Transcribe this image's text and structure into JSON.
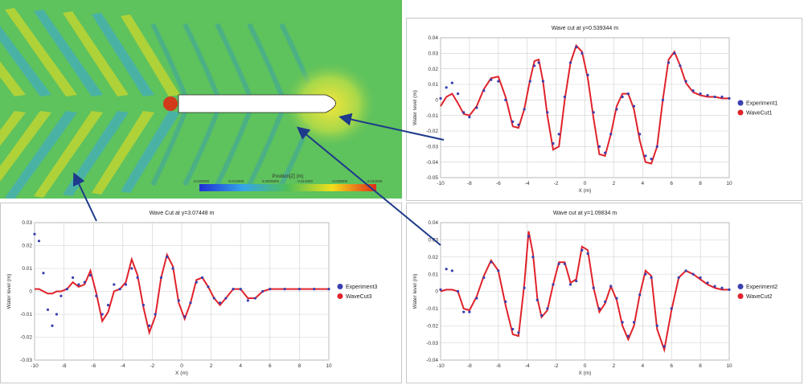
{
  "contour": {
    "legend_label": "Position[Z] (m)",
    "legend_ticks": [
      "-0.028000",
      "-0.014000",
      "0.0000000",
      "0.014000",
      "0.028000",
      "0.042000"
    ],
    "colors": {
      "low": "#1f2fd6",
      "mid": "#4fbf57",
      "high": "#e22b1b",
      "hull": "#ffffff"
    }
  },
  "chart_data": [
    {
      "id": "p1",
      "type": "line",
      "title": "Wave cut at y=0.539344 m",
      "xlabel": "X (m)",
      "ylabel": "Water level (m)",
      "xlim": [
        -10,
        10
      ],
      "ylim": [
        -0.05,
        0.04
      ],
      "xticks": [
        -10,
        -8,
        -6,
        -4,
        -2,
        0,
        2,
        4,
        6,
        8,
        10
      ],
      "yticks": [
        -0.05,
        -0.04,
        -0.03,
        -0.02,
        -0.01,
        0,
        0.01,
        0.02,
        0.03,
        0.04
      ],
      "grid": true,
      "legend_position": "right",
      "series": [
        {
          "name": "Experiment1",
          "color": "#3a3fb0",
          "style": "dots",
          "x": [
            -10,
            -9.6,
            -9.2,
            -8.8,
            -8.4,
            -8,
            -7.5,
            -7,
            -6.5,
            -6,
            -5.5,
            -5,
            -4.6,
            -4.2,
            -3.8,
            -3.5,
            -3.2,
            -2.9,
            -2.6,
            -2.2,
            -1.8,
            -1.4,
            -1,
            -0.6,
            -0.2,
            0.2,
            0.6,
            1,
            1.4,
            1.8,
            2.2,
            2.6,
            3,
            3.4,
            3.8,
            4.2,
            4.6,
            5,
            5.4,
            5.8,
            6.2,
            6.6,
            7,
            7.5,
            8,
            8.5,
            9,
            9.5,
            10
          ],
          "y": [
            0.001,
            0.008,
            0.011,
            0.004,
            -0.008,
            -0.011,
            -0.005,
            0.006,
            0.013,
            0.012,
            0,
            -0.014,
            -0.016,
            -0.006,
            0.012,
            0.022,
            0.024,
            0.012,
            -0.008,
            -0.028,
            -0.022,
            0.002,
            0.024,
            0.034,
            0.03,
            0.016,
            -0.008,
            -0.03,
            -0.034,
            -0.022,
            -0.006,
            0.002,
            0.004,
            -0.004,
            -0.022,
            -0.036,
            -0.038,
            -0.03,
            0,
            0.024,
            0.03,
            0.022,
            0.012,
            0.006,
            0.004,
            0.003,
            0.002,
            0.002,
            0.001
          ]
        },
        {
          "name": "WaveCut1",
          "color": "#e0222a",
          "style": "line",
          "x": [
            -10,
            -9.6,
            -9.2,
            -8.8,
            -8.4,
            -8,
            -7.5,
            -7,
            -6.5,
            -6,
            -5.5,
            -5,
            -4.6,
            -4.2,
            -3.8,
            -3.5,
            -3.2,
            -2.9,
            -2.6,
            -2.2,
            -1.8,
            -1.4,
            -1,
            -0.6,
            -0.2,
            0.2,
            0.6,
            1,
            1.4,
            1.8,
            2.2,
            2.6,
            3,
            3.4,
            3.8,
            4.2,
            4.6,
            5,
            5.4,
            5.8,
            6.2,
            6.6,
            7,
            7.5,
            8,
            8.5,
            9,
            9.5,
            10
          ],
          "y": [
            -0.004,
            0.002,
            0.004,
            -0.002,
            -0.009,
            -0.01,
            -0.004,
            0.007,
            0.014,
            0.015,
            0.002,
            -0.017,
            -0.018,
            -0.006,
            0.013,
            0.025,
            0.026,
            0.012,
            -0.01,
            -0.032,
            -0.03,
            0,
            0.024,
            0.035,
            0.031,
            0.014,
            -0.012,
            -0.035,
            -0.036,
            -0.022,
            -0.004,
            0.004,
            0.004,
            -0.006,
            -0.026,
            -0.04,
            -0.041,
            -0.03,
            0,
            0.026,
            0.031,
            0.022,
            0.011,
            0.005,
            0.003,
            0.002,
            0.002,
            0.001,
            0.001
          ]
        }
      ]
    },
    {
      "id": "p3",
      "type": "line",
      "title": "Wave Cut at y=3.07448 m",
      "xlabel": "X (m)",
      "ylabel": "Water level (m)",
      "xlim": [
        -10,
        10
      ],
      "ylim": [
        -0.03,
        0.03
      ],
      "xticks": [
        -10,
        -8,
        -6,
        -4,
        -2,
        0,
        2,
        4,
        6,
        8,
        10
      ],
      "yticks": [
        -0.03,
        -0.02,
        -0.01,
        0,
        0.01,
        0.02,
        0.03
      ],
      "grid": true,
      "legend_position": "right",
      "series": [
        {
          "name": "Experiment3",
          "color": "#3a3fb0",
          "style": "dots",
          "x": [
            -10,
            -9.7,
            -9.4,
            -9.1,
            -8.8,
            -8.5,
            -8.2,
            -7.8,
            -7.4,
            -7,
            -6.6,
            -6.2,
            -5.8,
            -5.4,
            -5,
            -4.6,
            -4.2,
            -3.8,
            -3.4,
            -3,
            -2.6,
            -2.2,
            -1.8,
            -1.4,
            -1,
            -0.6,
            -0.2,
            0.2,
            0.6,
            1,
            1.4,
            1.8,
            2.2,
            2.6,
            3,
            3.5,
            4,
            4.5,
            5,
            5.5,
            6,
            7,
            8,
            9,
            10
          ],
          "y": [
            0.025,
            0.022,
            0.008,
            -0.008,
            -0.015,
            -0.01,
            -0.002,
            0.001,
            0.006,
            0.003,
            0.004,
            0.007,
            -0.002,
            -0.01,
            -0.006,
            0.003,
            0.001,
            0.003,
            0.01,
            0.006,
            -0.006,
            -0.015,
            -0.01,
            0.006,
            0.015,
            0.01,
            -0.004,
            -0.011,
            -0.005,
            0.004,
            0.006,
            0.002,
            -0.003,
            -0.005,
            -0.003,
            0.001,
            0.001,
            -0.004,
            -0.003,
            0,
            0.001,
            0.001,
            0.001,
            0.001,
            0.001
          ]
        },
        {
          "name": "WaveCut3",
          "color": "#e0222a",
          "style": "line",
          "x": [
            -10,
            -9.7,
            -9.4,
            -9.1,
            -8.8,
            -8.5,
            -8.2,
            -7.8,
            -7.4,
            -7,
            -6.6,
            -6.2,
            -5.8,
            -5.4,
            -5,
            -4.6,
            -4.2,
            -3.8,
            -3.4,
            -3,
            -2.6,
            -2.2,
            -1.8,
            -1.4,
            -1,
            -0.6,
            -0.2,
            0.2,
            0.6,
            1,
            1.4,
            1.8,
            2.2,
            2.6,
            3,
            3.5,
            4,
            4.5,
            5,
            5.5,
            6,
            7,
            8,
            9,
            10
          ],
          "y": [
            0.001,
            0.001,
            0,
            -0.001,
            -0.001,
            0,
            0,
            0.001,
            0.004,
            0.002,
            0.003,
            0.009,
            -0.001,
            -0.013,
            -0.009,
            0,
            0.001,
            0.004,
            0.014,
            0.007,
            -0.007,
            -0.018,
            -0.011,
            0.006,
            0.016,
            0.011,
            -0.005,
            -0.012,
            -0.005,
            0.005,
            0.006,
            0.002,
            -0.003,
            -0.006,
            -0.003,
            0.001,
            0.001,
            -0.003,
            -0.003,
            0,
            0.001,
            0.001,
            0.001,
            0.001,
            0.001
          ]
        }
      ]
    },
    {
      "id": "p2",
      "type": "line",
      "title": "Wave cut at y=1.09834 m",
      "xlabel": "X (m)",
      "ylabel": "Water level (m)",
      "xlim": [
        -10,
        10
      ],
      "ylim": [
        -0.04,
        0.04
      ],
      "xticks": [
        -10,
        -8,
        -6,
        -4,
        -2,
        0,
        2,
        4,
        6,
        8,
        10
      ],
      "yticks": [
        -0.04,
        -0.03,
        -0.02,
        -0.01,
        0,
        0.01,
        0.02,
        0.03,
        0.04
      ],
      "grid": true,
      "legend_position": "right",
      "series": [
        {
          "name": "Experiment2",
          "color": "#3a3fb0",
          "style": "dots",
          "x": [
            -10,
            -9.6,
            -9.2,
            -8.8,
            -8.4,
            -8,
            -7.5,
            -7,
            -6.5,
            -6,
            -5.5,
            -5,
            -4.6,
            -4.2,
            -3.9,
            -3.6,
            -3.3,
            -3,
            -2.6,
            -2.2,
            -1.8,
            -1.4,
            -1,
            -0.6,
            -0.2,
            0.2,
            0.6,
            1,
            1.4,
            1.8,
            2.2,
            2.6,
            3,
            3.4,
            3.8,
            4.2,
            4.6,
            5,
            5.5,
            6,
            6.5,
            7,
            7.5,
            8,
            8.5,
            9,
            9.5,
            10
          ],
          "y": [
            0.001,
            0.013,
            0.012,
            0,
            -0.012,
            -0.012,
            -0.004,
            0.008,
            0.017,
            0.012,
            -0.006,
            -0.022,
            -0.024,
            0.002,
            0.032,
            0.02,
            -0.005,
            -0.014,
            -0.01,
            0.004,
            0.016,
            0.016,
            0.004,
            0.006,
            0.024,
            0.022,
            0.002,
            -0.01,
            -0.006,
            0.003,
            -0.004,
            -0.018,
            -0.026,
            -0.018,
            -0.002,
            0.01,
            0.008,
            -0.02,
            -0.032,
            -0.01,
            0.008,
            0.012,
            0.01,
            0.008,
            0.005,
            0.003,
            0.002,
            0.001
          ]
        },
        {
          "name": "WaveCut2",
          "color": "#e0222a",
          "style": "line",
          "x": [
            -10,
            -9.6,
            -9.2,
            -8.8,
            -8.4,
            -8,
            -7.5,
            -7,
            -6.5,
            -6,
            -5.5,
            -5,
            -4.6,
            -4.2,
            -3.9,
            -3.6,
            -3.3,
            -3,
            -2.6,
            -2.2,
            -1.8,
            -1.4,
            -1,
            -0.6,
            -0.2,
            0.2,
            0.6,
            1,
            1.4,
            1.8,
            2.2,
            2.6,
            3,
            3.4,
            3.8,
            4.2,
            4.6,
            5,
            5.5,
            6,
            6.5,
            7,
            7.5,
            8,
            8.5,
            9,
            9.5,
            10
          ],
          "y": [
            0,
            0.001,
            0.001,
            0,
            -0.01,
            -0.011,
            -0.003,
            0.009,
            0.018,
            0.012,
            -0.008,
            -0.025,
            -0.026,
            0.004,
            0.035,
            0.022,
            -0.004,
            -0.015,
            -0.011,
            0.004,
            0.017,
            0.017,
            0.005,
            0.007,
            0.026,
            0.024,
            0.002,
            -0.012,
            -0.007,
            0.003,
            -0.005,
            -0.02,
            -0.028,
            -0.02,
            -0.002,
            0.012,
            0.009,
            -0.022,
            -0.034,
            -0.011,
            0.008,
            0.012,
            0.01,
            0.007,
            0.004,
            0.002,
            0.001,
            0.001
          ]
        }
      ]
    }
  ]
}
